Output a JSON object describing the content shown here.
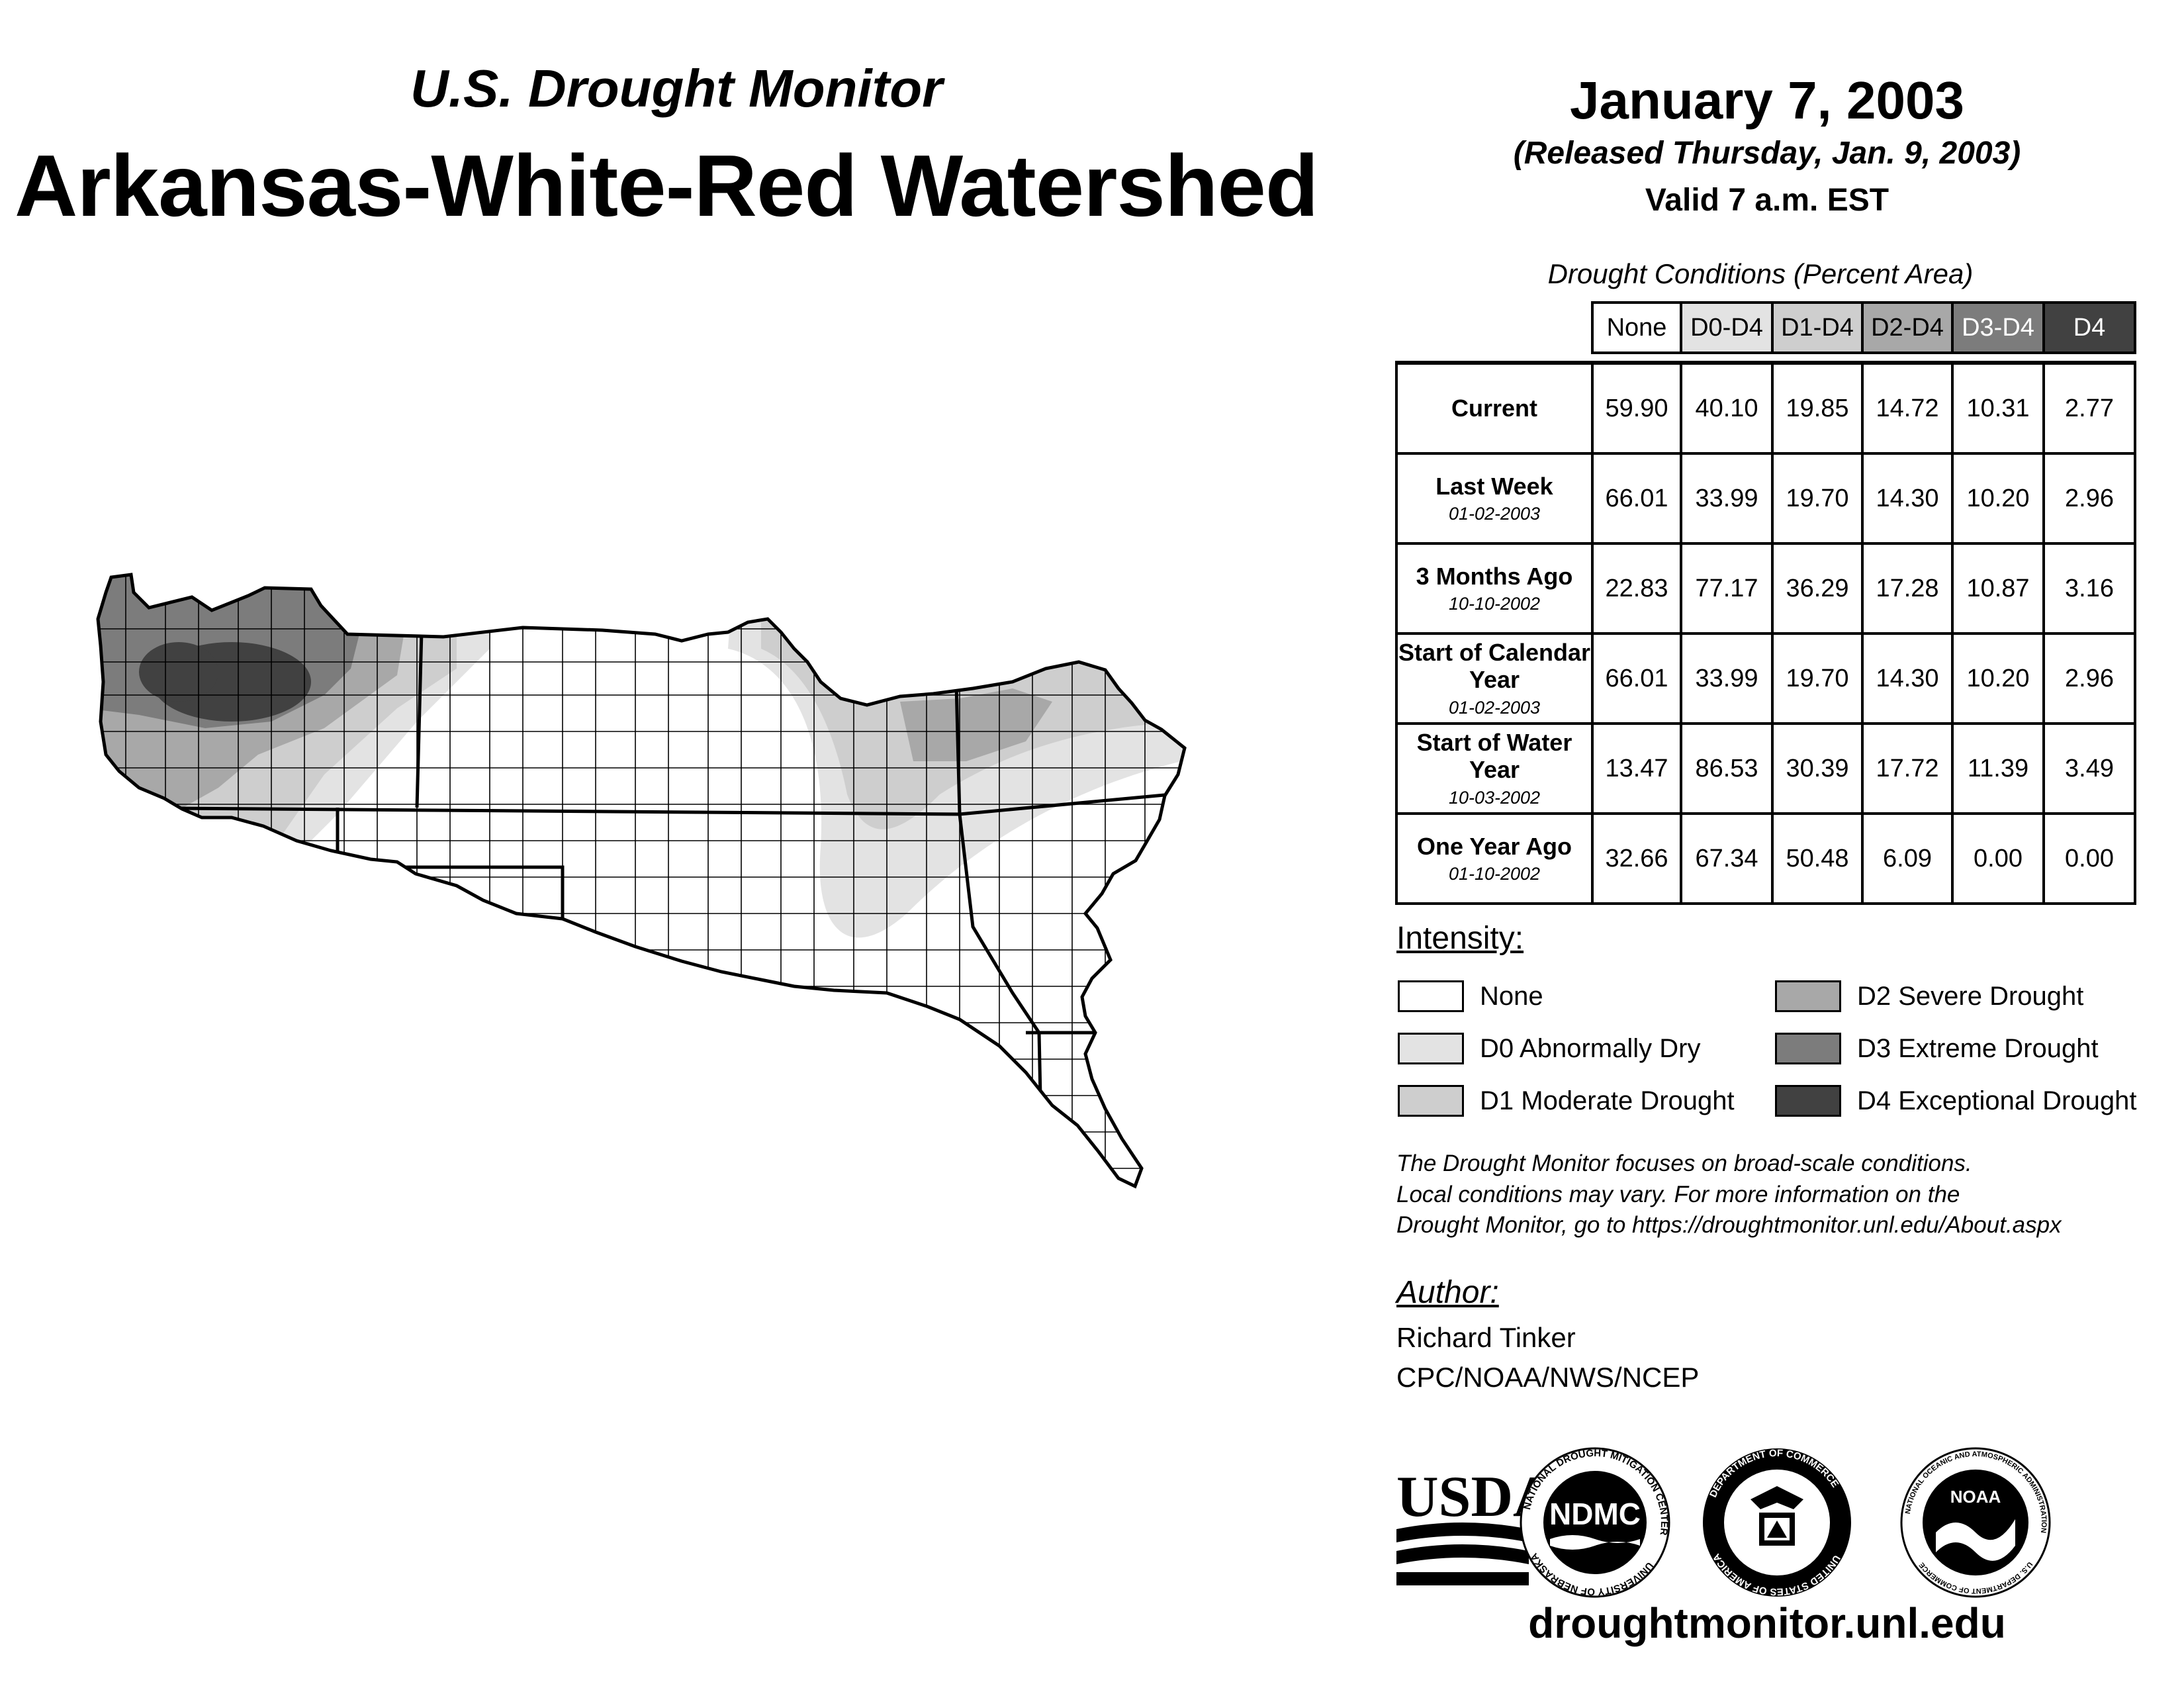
{
  "header": {
    "subtitle": "U.S. Drought Monitor",
    "title": "Arkansas-White-Red Watershed",
    "date": "January 7, 2003",
    "released": "(Released Thursday, Jan. 9, 2003)",
    "valid": "Valid 7 a.m. EST"
  },
  "table": {
    "caption": "Drought Conditions (Percent Area)",
    "columns": [
      "None",
      "D0-D4",
      "D1-D4",
      "D2-D4",
      "D3-D4",
      "D4"
    ],
    "rows": [
      {
        "label": "Current",
        "date": "",
        "values": [
          "59.90",
          "40.10",
          "19.85",
          "14.72",
          "10.31",
          "2.77"
        ]
      },
      {
        "label": "Last Week",
        "date": "01-02-2003",
        "values": [
          "66.01",
          "33.99",
          "19.70",
          "14.30",
          "10.20",
          "2.96"
        ]
      },
      {
        "label": "3 Months Ago",
        "date": "10-10-2002",
        "values": [
          "22.83",
          "77.17",
          "36.29",
          "17.28",
          "10.87",
          "3.16"
        ]
      },
      {
        "label": "Start of Calendar Year",
        "date": "01-02-2003",
        "values": [
          "66.01",
          "33.99",
          "19.70",
          "14.30",
          "10.20",
          "2.96"
        ]
      },
      {
        "label": "Start of Water Year",
        "date": "10-03-2002",
        "values": [
          "13.47",
          "86.53",
          "30.39",
          "17.72",
          "11.39",
          "3.49"
        ]
      },
      {
        "label": "One Year Ago",
        "date": "01-10-2002",
        "values": [
          "32.66",
          "67.34",
          "50.48",
          "6.09",
          "0.00",
          "0.00"
        ]
      }
    ]
  },
  "legend": {
    "title": "Intensity:",
    "items": [
      {
        "label": "None",
        "color": "#ffffff"
      },
      {
        "label": "D0 Abnormally Dry",
        "color": "#e3e3e3"
      },
      {
        "label": "D1 Moderate Drought",
        "color": "#cecece"
      },
      {
        "label": "D2 Severe Drought",
        "color": "#a8a8a8"
      },
      {
        "label": "D3 Extreme Drought",
        "color": "#7c7c7c"
      },
      {
        "label": "D4 Exceptional Drought",
        "color": "#414141"
      }
    ]
  },
  "note": {
    "line1": "The Drought Monitor focuses on broad-scale conditions.",
    "line2": "Local conditions may vary. For more information on the",
    "line3": "Drought Monitor, go to https://droughtmonitor.unl.edu/About.aspx"
  },
  "author": {
    "title": "Author:",
    "name": "Richard Tinker",
    "org": "CPC/NOAA/NWS/NCEP"
  },
  "logos": {
    "usda": "USDA",
    "ndmc": "NDMC",
    "ndmc_ring_top": "NATIONAL DROUGHT MITIGATION CENTER",
    "ndmc_ring_bottom": "UNIVERSITY OF NEBRASKA",
    "doc_ring_top": "DEPARTMENT OF COMMERCE",
    "doc_ring_bottom": "UNITED STATES OF AMERICA",
    "noaa": "NOAA",
    "noaa_ring_top": "NATIONAL OCEANIC AND ATMOSPHERIC ADMINISTRATION",
    "noaa_ring_bottom": "U.S. DEPARTMENT OF COMMERCE"
  },
  "footer": {
    "url": "droughtmonitor.unl.edu"
  }
}
